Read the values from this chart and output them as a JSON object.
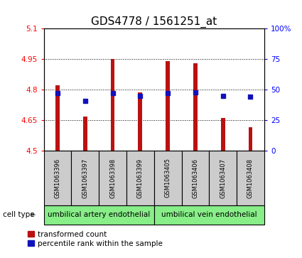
{
  "title": "GDS4778 / 1561251_at",
  "samples": [
    "GSM1063396",
    "GSM1063397",
    "GSM1063398",
    "GSM1063399",
    "GSM1063405",
    "GSM1063406",
    "GSM1063407",
    "GSM1063408"
  ],
  "red_values": [
    4.82,
    4.67,
    4.95,
    4.785,
    4.94,
    4.93,
    4.66,
    4.615
  ],
  "blue_values": [
    47,
    41,
    47,
    45,
    47,
    48,
    45,
    44
  ],
  "ylim": [
    4.5,
    5.1
  ],
  "y2lim": [
    0,
    100
  ],
  "yticks": [
    4.5,
    4.65,
    4.8,
    4.95,
    5.1
  ],
  "ytick_labels": [
    "4.5",
    "4.65",
    "4.8",
    "4.95",
    "5.1"
  ],
  "y2ticks": [
    0,
    25,
    50,
    75,
    100
  ],
  "y2tick_labels": [
    "0",
    "25",
    "50",
    "75",
    "100%"
  ],
  "group1_label": "umbilical artery endothelial",
  "group2_label": "umbilical vein endothelial",
  "cell_type_label": "cell type",
  "legend_red": "transformed count",
  "legend_blue": "percentile rank within the sample",
  "group1_indices": [
    0,
    1,
    2,
    3
  ],
  "group2_indices": [
    4,
    5,
    6,
    7
  ],
  "bar_width": 0.15,
  "red_color": "#bb1111",
  "blue_color": "#1111bb",
  "group_bg_color": "#88ee88",
  "sample_bg_color": "#cccccc",
  "title_fontsize": 11,
  "tick_fontsize": 7.5,
  "sample_fontsize": 6,
  "group_fontsize": 7.5,
  "legend_fontsize": 7.5
}
